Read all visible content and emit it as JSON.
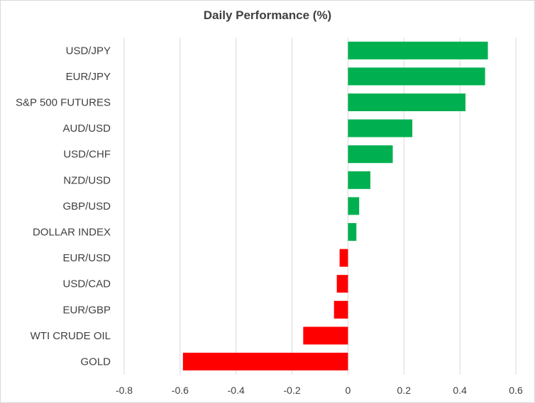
{
  "chart_data": {
    "type": "bar",
    "orientation": "horizontal",
    "title": "Daily Performance (%)",
    "categories": [
      "USD/JPY",
      "EUR/JPY",
      "S&P 500 FUTURES",
      "AUD/USD",
      "USD/CHF",
      "NZD/USD",
      "GBP/USD",
      "DOLLAR INDEX",
      "EUR/USD",
      "USD/CAD",
      "EUR/GBP",
      "WTI CRUDE OIL",
      "GOLD"
    ],
    "values": [
      0.5,
      0.49,
      0.42,
      0.23,
      0.16,
      0.08,
      0.04,
      0.03,
      -0.03,
      -0.04,
      -0.05,
      -0.16,
      -0.59
    ],
    "xlim": [
      -0.8,
      0.6
    ],
    "xticks": [
      "-0.8",
      "-0.6",
      "-0.4",
      "-0.2",
      "0",
      "0.2",
      "0.4",
      "0.6"
    ],
    "grid": "vertical",
    "colors": {
      "positive": "#00b050",
      "negative": "#ff0000",
      "grid": "#d9d9d9",
      "text": "#404040"
    }
  }
}
